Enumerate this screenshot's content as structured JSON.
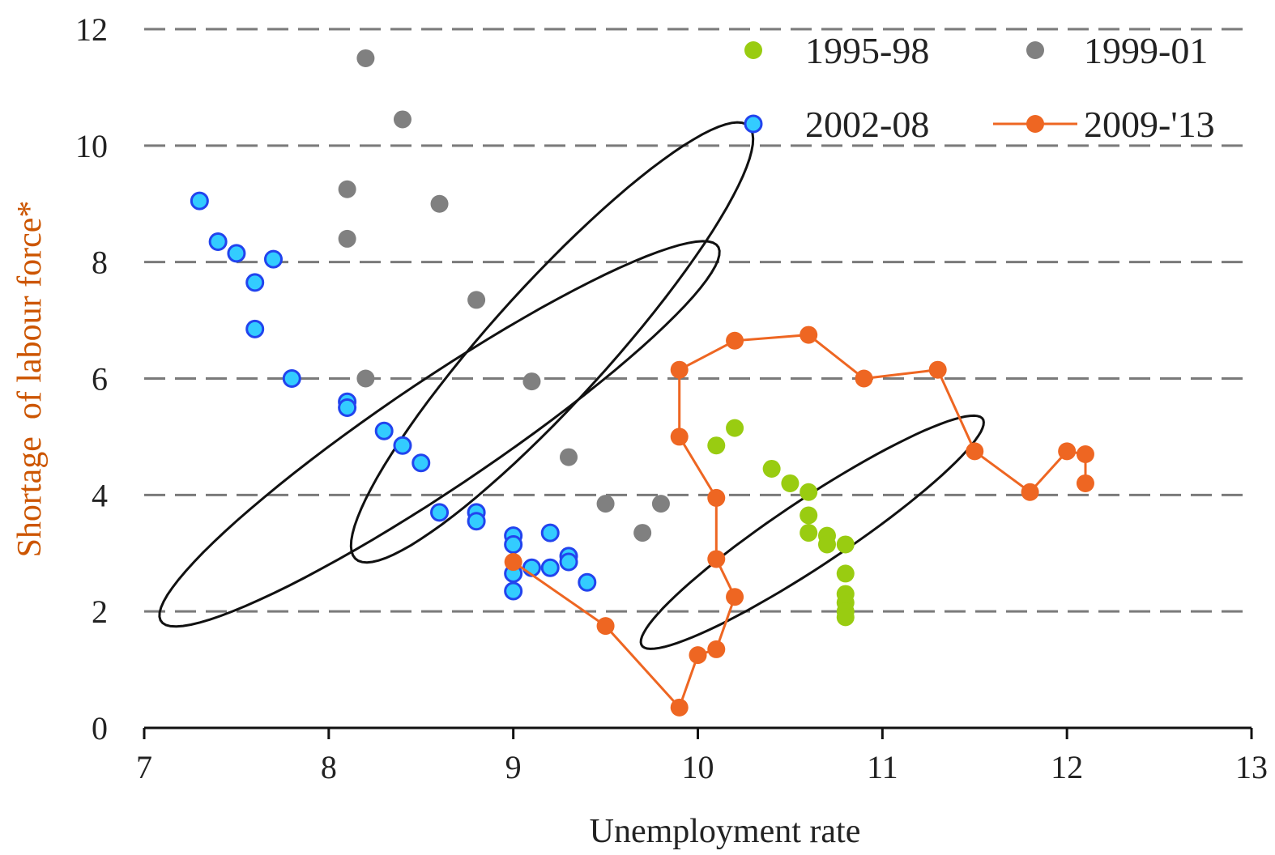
{
  "chart_data": {
    "type": "scatter",
    "xlabel": "Unemployment rate",
    "ylabel": "Shortage  of labour force*",
    "xlim": [
      7,
      13
    ],
    "ylim": [
      0,
      12
    ],
    "xticks": [
      "7",
      "8",
      "9",
      "10",
      "11",
      "12",
      "13"
    ],
    "yticks": [
      "0",
      "2",
      "4",
      "6",
      "8",
      "10",
      "12"
    ],
    "grid": "horizontal dashed",
    "legend_position": "top-right",
    "series": [
      {
        "name": "1995-98",
        "style": "points",
        "color": "#99cc11",
        "points": [
          [
            10.1,
            4.85
          ],
          [
            10.2,
            5.15
          ],
          [
            10.4,
            4.45
          ],
          [
            10.5,
            4.2
          ],
          [
            10.6,
            4.05
          ],
          [
            10.6,
            3.65
          ],
          [
            10.6,
            3.35
          ],
          [
            10.7,
            3.3
          ],
          [
            10.7,
            3.15
          ],
          [
            10.8,
            3.15
          ],
          [
            10.8,
            2.65
          ],
          [
            10.8,
            2.3
          ],
          [
            10.8,
            2.15
          ],
          [
            10.8,
            2.0
          ],
          [
            10.8,
            1.9
          ]
        ]
      },
      {
        "name": "1999-01",
        "style": "points",
        "color": "#808080",
        "points": [
          [
            8.2,
            11.5
          ],
          [
            8.4,
            10.45
          ],
          [
            8.1,
            9.25
          ],
          [
            8.6,
            9.0
          ],
          [
            8.1,
            8.4
          ],
          [
            8.8,
            7.35
          ],
          [
            8.2,
            6.0
          ],
          [
            9.1,
            5.95
          ],
          [
            9.3,
            4.65
          ],
          [
            9.5,
            3.85
          ],
          [
            9.8,
            3.85
          ],
          [
            9.7,
            3.35
          ]
        ]
      },
      {
        "name": "2002-08",
        "style": "points",
        "color": "#33ccff",
        "edge_color": "#2244ee",
        "points": [
          [
            7.3,
            9.05
          ],
          [
            7.4,
            8.35
          ],
          [
            7.5,
            8.15
          ],
          [
            7.7,
            8.05
          ],
          [
            7.6,
            7.65
          ],
          [
            7.6,
            6.85
          ],
          [
            7.8,
            6.0
          ],
          [
            8.1,
            5.6
          ],
          [
            8.1,
            5.5
          ],
          [
            8.3,
            5.1
          ],
          [
            8.4,
            4.85
          ],
          [
            8.5,
            4.55
          ],
          [
            8.6,
            3.7
          ],
          [
            8.8,
            3.7
          ],
          [
            8.8,
            3.55
          ],
          [
            9.0,
            3.3
          ],
          [
            9.0,
            3.15
          ],
          [
            9.2,
            3.35
          ],
          [
            9.3,
            2.95
          ],
          [
            9.3,
            2.85
          ],
          [
            9.1,
            2.75
          ],
          [
            9.2,
            2.75
          ],
          [
            9.0,
            2.65
          ],
          [
            9.4,
            2.5
          ],
          [
            9.0,
            2.35
          ]
        ]
      },
      {
        "name": "2009-'13",
        "style": "line-markers",
        "color": "#ee6622",
        "points": [
          [
            9.0,
            2.85
          ],
          [
            9.5,
            1.75
          ],
          [
            9.9,
            0.35
          ],
          [
            10.0,
            1.25
          ],
          [
            10.1,
            1.35
          ],
          [
            10.2,
            2.25
          ],
          [
            10.1,
            2.9
          ],
          [
            10.1,
            3.95
          ],
          [
            9.9,
            5.0
          ],
          [
            9.9,
            6.15
          ],
          [
            10.2,
            6.65
          ],
          [
            10.6,
            6.75
          ],
          [
            10.9,
            6.0
          ],
          [
            11.3,
            6.15
          ],
          [
            11.5,
            4.75
          ],
          [
            11.8,
            4.05
          ],
          [
            12.0,
            4.75
          ],
          [
            12.1,
            4.7
          ],
          [
            12.1,
            4.2
          ]
        ]
      }
    ],
    "annotations": [
      {
        "shape": "ellipse",
        "center": [
          8.6,
          5.05
        ],
        "semi_axis_1": [
          1.5,
          3.25
        ],
        "semi_axis_2": [
          0.23,
          -0.62
        ],
        "color": "#111111"
      },
      {
        "shape": "ellipse",
        "center": [
          9.21,
          6.62
        ],
        "semi_axis_1": [
          1.05,
          3.75
        ],
        "semi_axis_2": [
          0.29,
          -0.47
        ],
        "color": "#111111"
      },
      {
        "shape": "ellipse",
        "center": [
          10.62,
          3.36
        ],
        "semi_axis_1": [
          0.92,
          1.96
        ],
        "semi_axis_2": [
          0.13,
          -0.41
        ],
        "color": "#111111"
      }
    ]
  }
}
